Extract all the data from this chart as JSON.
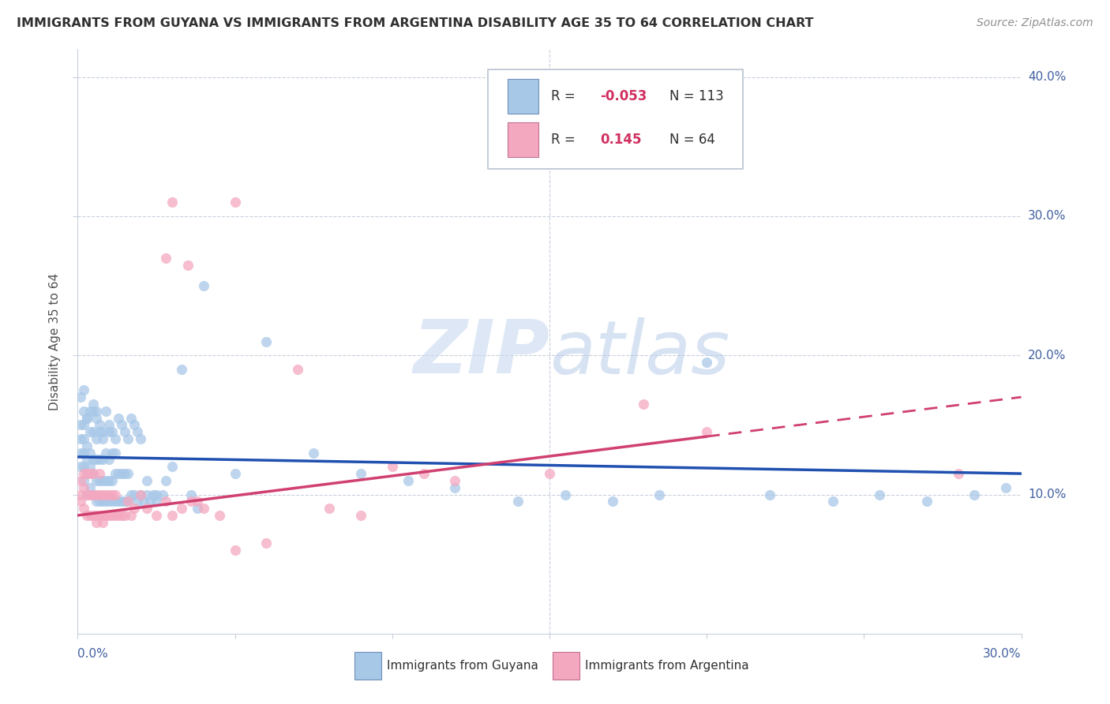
{
  "title": "IMMIGRANTS FROM GUYANA VS IMMIGRANTS FROM ARGENTINA DISABILITY AGE 35 TO 64 CORRELATION CHART",
  "source": "Source: ZipAtlas.com",
  "ylabel": "Disability Age 35 to 64",
  "xlim": [
    0.0,
    0.3
  ],
  "ylim": [
    0.0,
    0.42
  ],
  "yticks": [
    0.1,
    0.2,
    0.3,
    0.4
  ],
  "ytick_labels": [
    "10.0%",
    "20.0%",
    "30.0%",
    "40.0%"
  ],
  "xticks": [
    0.0,
    0.05,
    0.1,
    0.15,
    0.2,
    0.25,
    0.3
  ],
  "blue_color": "#a8c8e8",
  "pink_color": "#f4a8c0",
  "blue_line_color": "#2050b0",
  "pink_line_color": "#d04070",
  "watermark_color": "#d0dcf0",
  "background_color": "#ffffff",
  "grid_color": "#c8d0dc",
  "title_color": "#303030",
  "source_color": "#909090",
  "axis_label_color": "#4060a0",
  "legend_r_color": "#d03060",
  "legend_text_color": "#303030",
  "guyana_x": [
    0.001,
    0.001,
    0.001,
    0.001,
    0.002,
    0.002,
    0.002,
    0.002,
    0.002,
    0.002,
    0.003,
    0.003,
    0.003,
    0.003,
    0.003,
    0.004,
    0.004,
    0.004,
    0.004,
    0.005,
    0.005,
    0.005,
    0.005,
    0.005,
    0.006,
    0.006,
    0.006,
    0.006,
    0.006,
    0.007,
    0.007,
    0.007,
    0.007,
    0.008,
    0.008,
    0.008,
    0.008,
    0.009,
    0.009,
    0.009,
    0.01,
    0.01,
    0.01,
    0.01,
    0.011,
    0.011,
    0.011,
    0.012,
    0.012,
    0.012,
    0.013,
    0.013,
    0.014,
    0.014,
    0.015,
    0.015,
    0.016,
    0.016,
    0.017,
    0.018,
    0.019,
    0.02,
    0.021,
    0.022,
    0.023,
    0.024,
    0.025,
    0.027,
    0.03,
    0.033,
    0.036,
    0.038,
    0.04,
    0.05,
    0.06,
    0.075,
    0.09,
    0.105,
    0.12,
    0.14,
    0.155,
    0.17,
    0.185,
    0.2,
    0.22,
    0.24,
    0.255,
    0.27,
    0.285,
    0.295,
    0.001,
    0.002,
    0.003,
    0.004,
    0.005,
    0.006,
    0.007,
    0.008,
    0.009,
    0.01,
    0.011,
    0.012,
    0.013,
    0.014,
    0.015,
    0.016,
    0.017,
    0.018,
    0.019,
    0.02,
    0.022,
    0.025,
    0.028
  ],
  "guyana_y": [
    0.12,
    0.13,
    0.15,
    0.17,
    0.11,
    0.12,
    0.13,
    0.14,
    0.16,
    0.175,
    0.1,
    0.115,
    0.125,
    0.135,
    0.155,
    0.105,
    0.12,
    0.13,
    0.16,
    0.1,
    0.115,
    0.125,
    0.145,
    0.165,
    0.095,
    0.11,
    0.125,
    0.14,
    0.16,
    0.095,
    0.11,
    0.125,
    0.15,
    0.095,
    0.11,
    0.125,
    0.145,
    0.095,
    0.11,
    0.13,
    0.095,
    0.11,
    0.125,
    0.145,
    0.095,
    0.11,
    0.13,
    0.095,
    0.115,
    0.13,
    0.095,
    0.115,
    0.095,
    0.115,
    0.095,
    0.115,
    0.095,
    0.115,
    0.1,
    0.1,
    0.095,
    0.1,
    0.095,
    0.1,
    0.095,
    0.1,
    0.095,
    0.1,
    0.12,
    0.19,
    0.1,
    0.09,
    0.25,
    0.115,
    0.21,
    0.13,
    0.115,
    0.11,
    0.105,
    0.095,
    0.1,
    0.095,
    0.1,
    0.195,
    0.1,
    0.095,
    0.1,
    0.095,
    0.1,
    0.105,
    0.14,
    0.15,
    0.155,
    0.145,
    0.16,
    0.155,
    0.145,
    0.14,
    0.16,
    0.15,
    0.145,
    0.14,
    0.155,
    0.15,
    0.145,
    0.14,
    0.155,
    0.15,
    0.145,
    0.14,
    0.11,
    0.1,
    0.11
  ],
  "argentina_x": [
    0.001,
    0.001,
    0.001,
    0.002,
    0.002,
    0.002,
    0.003,
    0.003,
    0.003,
    0.004,
    0.004,
    0.004,
    0.005,
    0.005,
    0.005,
    0.006,
    0.006,
    0.006,
    0.007,
    0.007,
    0.007,
    0.008,
    0.008,
    0.008,
    0.009,
    0.009,
    0.01,
    0.01,
    0.011,
    0.011,
    0.012,
    0.012,
    0.013,
    0.014,
    0.015,
    0.016,
    0.017,
    0.018,
    0.02,
    0.022,
    0.025,
    0.028,
    0.03,
    0.033,
    0.036,
    0.038,
    0.04,
    0.045,
    0.05,
    0.06,
    0.07,
    0.08,
    0.09,
    0.1,
    0.11,
    0.12,
    0.15,
    0.18,
    0.2,
    0.28,
    0.03,
    0.05,
    0.028,
    0.035
  ],
  "argentina_y": [
    0.1,
    0.11,
    0.095,
    0.09,
    0.105,
    0.115,
    0.085,
    0.1,
    0.115,
    0.085,
    0.1,
    0.115,
    0.085,
    0.1,
    0.115,
    0.085,
    0.1,
    0.08,
    0.085,
    0.1,
    0.115,
    0.085,
    0.1,
    0.08,
    0.085,
    0.1,
    0.085,
    0.1,
    0.085,
    0.1,
    0.085,
    0.1,
    0.085,
    0.085,
    0.085,
    0.095,
    0.085,
    0.09,
    0.1,
    0.09,
    0.085,
    0.095,
    0.085,
    0.09,
    0.095,
    0.095,
    0.09,
    0.085,
    0.06,
    0.065,
    0.19,
    0.09,
    0.085,
    0.12,
    0.115,
    0.11,
    0.115,
    0.165,
    0.145,
    0.115,
    0.31,
    0.31,
    0.27,
    0.265
  ]
}
